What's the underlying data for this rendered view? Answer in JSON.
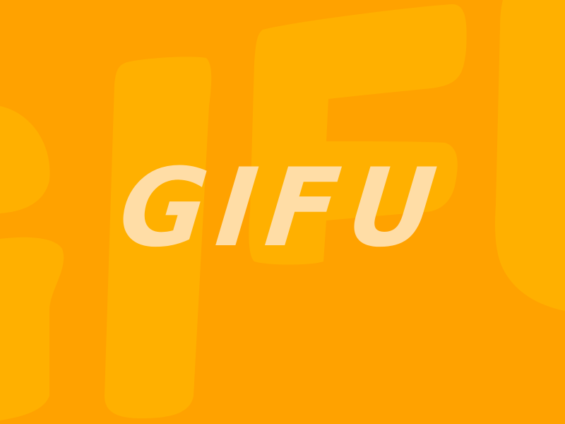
{
  "title": {
    "text": "GIFU"
  },
  "colors": {
    "background": "#FFA200",
    "background_letters": "#FFB000",
    "title_text": "#FFDDA6"
  }
}
